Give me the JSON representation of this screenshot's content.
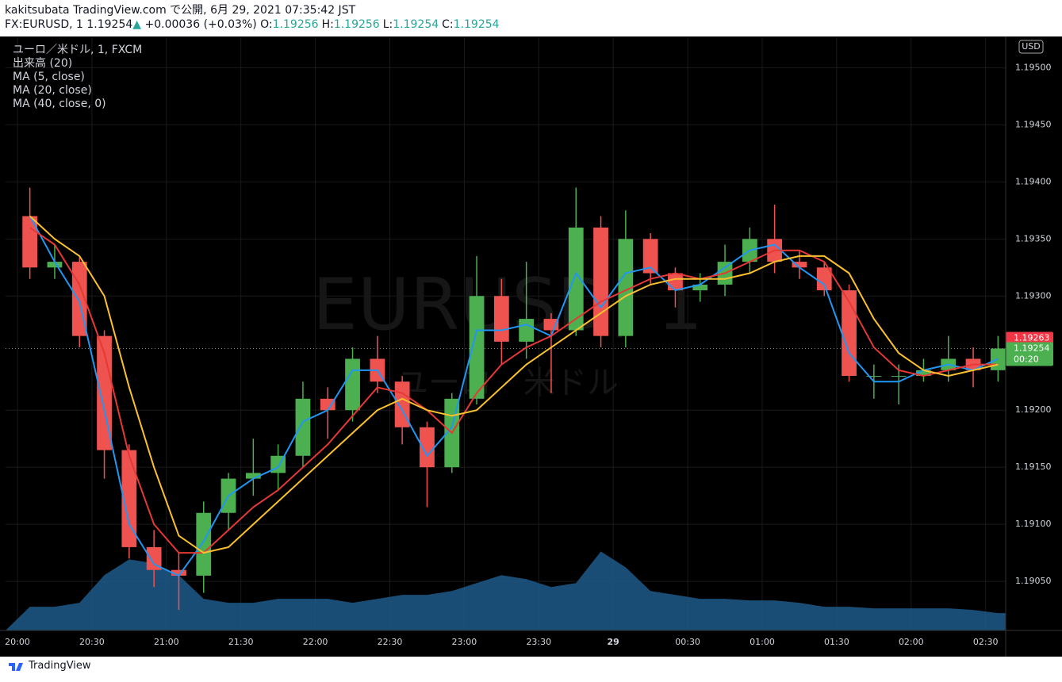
{
  "header": {
    "publisher": "kakitsubata TradingView.com で公開, 6月 29, 2021 07:35:42 JST",
    "symbol": "FX:EURUSD, 1",
    "last": "1.19254",
    "arrow": "▲",
    "change": "+0.00036 (+0.03%)",
    "ohlc": [
      {
        "label": "O:",
        "value": "1.19256"
      },
      {
        "label": "H:",
        "value": "1.19256"
      },
      {
        "label": "L:",
        "value": "1.19254"
      },
      {
        "label": "C:",
        "value": "1.19254"
      }
    ]
  },
  "footer": {
    "brand": "TradingView"
  },
  "chart_data": {
    "type": "candlestick",
    "legend_title": "ユーロ／米ドル, 1, FXCM",
    "watermark": [
      "EURUSD, 1",
      "ユーロ／米ドル"
    ],
    "currency": "USD",
    "categories": [
      "20:00",
      null,
      null,
      "20:30",
      null,
      null,
      "21:00",
      null,
      null,
      "21:30",
      null,
      null,
      "22:00",
      null,
      null,
      "22:30",
      null,
      null,
      "23:00",
      null,
      null,
      "23:30",
      null,
      null,
      "29",
      null,
      null,
      "00:30",
      null,
      null,
      "01:00",
      null,
      null,
      "01:30",
      null,
      null,
      "02:00",
      null,
      null,
      "02:30"
    ],
    "up_color": "#4caf50",
    "down_color": "#ef5350",
    "open": [
      1.1937,
      1.19325,
      1.1933,
      1.19265,
      1.19165,
      1.1908,
      1.1906,
      1.19055,
      1.1911,
      1.1914,
      1.19145,
      1.1916,
      1.1921,
      1.192,
      1.19245,
      1.19225,
      1.19185,
      1.1915,
      1.1921,
      1.193,
      1.1926,
      1.1928,
      1.1927,
      1.1936,
      1.19265,
      1.1935,
      1.1932,
      1.19305,
      1.1931,
      1.1933,
      1.1935,
      1.1933,
      1.19325,
      1.19305,
      1.1923,
      1.1923,
      1.1923,
      1.19235,
      1.19245,
      1.19235
    ],
    "high": [
      1.19395,
      1.19345,
      1.19335,
      1.1927,
      1.1917,
      1.19095,
      1.19075,
      1.1912,
      1.19145,
      1.19175,
      1.1917,
      1.19225,
      1.1922,
      1.19255,
      1.19265,
      1.1923,
      1.1919,
      1.19215,
      1.19335,
      1.19315,
      1.1933,
      1.19285,
      1.19395,
      1.1937,
      1.19375,
      1.19355,
      1.19325,
      1.1932,
      1.19345,
      1.1936,
      1.1938,
      1.1934,
      1.1933,
      1.1931,
      1.1924,
      1.1924,
      1.19245,
      1.19265,
      1.19255,
      1.19265
    ],
    "low": [
      1.19315,
      1.19315,
      1.19255,
      1.1914,
      1.1907,
      1.19045,
      1.19025,
      1.1904,
      1.19095,
      1.19125,
      1.1913,
      1.1915,
      1.19175,
      1.1919,
      1.19215,
      1.1917,
      1.19115,
      1.19145,
      1.19205,
      1.1924,
      1.19245,
      1.19215,
      1.19265,
      1.19255,
      1.19255,
      1.1931,
      1.1929,
      1.19295,
      1.193,
      1.1932,
      1.1932,
      1.19315,
      1.193,
      1.19225,
      1.1921,
      1.19205,
      1.19225,
      1.19225,
      1.1922,
      1.19225
    ],
    "close": [
      1.19325,
      1.1933,
      1.19265,
      1.19165,
      1.1908,
      1.1906,
      1.19055,
      1.1911,
      1.1914,
      1.19145,
      1.1916,
      1.1921,
      1.192,
      1.19245,
      1.19225,
      1.19185,
      1.1915,
      1.1921,
      1.193,
      1.1926,
      1.1928,
      1.1927,
      1.1936,
      1.19265,
      1.1935,
      1.1932,
      1.19305,
      1.1931,
      1.1933,
      1.1935,
      1.1933,
      1.19325,
      1.19305,
      1.1923,
      1.1923,
      1.1923,
      1.19235,
      1.19245,
      1.19235,
      1.19254
    ],
    "series": [
      {
        "name": "MA (5, close)",
        "color": "#2196f3",
        "values": [
          1.1937,
          1.1933,
          1.19295,
          1.192,
          1.191,
          1.19065,
          1.19055,
          1.19085,
          1.19125,
          1.1914,
          1.1915,
          1.1919,
          1.192,
          1.19235,
          1.19235,
          1.192,
          1.1916,
          1.19185,
          1.1927,
          1.1927,
          1.19275,
          1.19265,
          1.1932,
          1.1929,
          1.1932,
          1.19325,
          1.19305,
          1.1931,
          1.19325,
          1.1934,
          1.19345,
          1.19325,
          1.1931,
          1.1925,
          1.19225,
          1.19225,
          1.19235,
          1.1924,
          1.19235,
          1.19245
        ]
      },
      {
        "name": "MA (20, close)",
        "color": "#e53935",
        "values": [
          1.1936,
          1.19345,
          1.1931,
          1.1925,
          1.1916,
          1.191,
          1.19075,
          1.19075,
          1.19095,
          1.19115,
          1.1913,
          1.1915,
          1.1917,
          1.19195,
          1.1922,
          1.19215,
          1.192,
          1.1918,
          1.19215,
          1.1924,
          1.19255,
          1.19265,
          1.1928,
          1.19295,
          1.19305,
          1.19315,
          1.1932,
          1.19315,
          1.1932,
          1.1933,
          1.1934,
          1.1934,
          1.1933,
          1.19295,
          1.19255,
          1.19235,
          1.1923,
          1.19235,
          1.1924,
          1.1924
        ]
      },
      {
        "name": "MA (40, close, 0)",
        "color": "#fbc02d",
        "values": [
          1.1937,
          1.1935,
          1.19335,
          1.193,
          1.1922,
          1.1915,
          1.1909,
          1.19075,
          1.1908,
          1.191,
          1.1912,
          1.1914,
          1.1916,
          1.1918,
          1.192,
          1.1921,
          1.192,
          1.19195,
          1.192,
          1.1922,
          1.1924,
          1.19255,
          1.1927,
          1.19285,
          1.193,
          1.1931,
          1.19315,
          1.19315,
          1.19315,
          1.1932,
          1.1933,
          1.19335,
          1.19335,
          1.1932,
          1.1928,
          1.1925,
          1.19235,
          1.1923,
          1.19235,
          1.1924
        ]
      }
    ],
    "volume": {
      "name": "出来高 (20)",
      "color": "#1e5a8a",
      "ylim": [
        0,
        750
      ],
      "values": [
        30,
        30,
        35,
        70,
        90,
        85,
        70,
        40,
        35,
        35,
        40,
        40,
        40,
        35,
        40,
        45,
        45,
        50,
        60,
        70,
        65,
        55,
        60,
        100,
        80,
        50,
        45,
        40,
        40,
        38,
        38,
        35,
        30,
        30,
        28,
        28,
        28,
        28,
        26,
        22
      ]
    },
    "ylim": [
      1.19007,
      1.19526
    ],
    "yticks": [
      {
        "value": 1.195,
        "label": "1.19500"
      },
      {
        "value": 1.1945,
        "label": "1.19450"
      },
      {
        "value": 1.194,
        "label": "1.19400"
      },
      {
        "value": 1.1935,
        "label": "1.19350"
      },
      {
        "value": 1.193,
        "label": "1.19300"
      },
      {
        "value": 1.192,
        "label": "1.19200"
      },
      {
        "value": 1.1915,
        "label": "1.19150"
      },
      {
        "value": 1.191,
        "label": "1.19100"
      },
      {
        "value": 1.1905,
        "label": "1.19050"
      }
    ],
    "price_tag": {
      "value": 1.19263,
      "label": "1.19263",
      "color": "#f23645"
    },
    "last_price": {
      "value": 1.19254,
      "label": "1.19254",
      "countdown": "00:20",
      "color": "#4caf50"
    },
    "grid": true
  }
}
